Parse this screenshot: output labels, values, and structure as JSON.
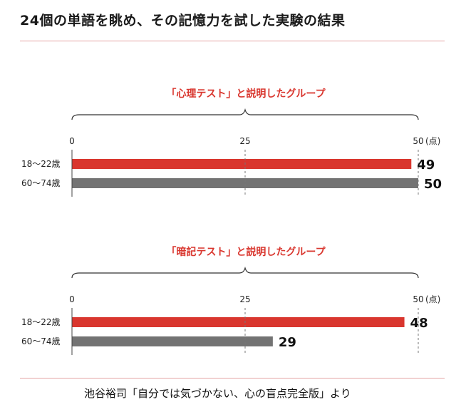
{
  "title": "24個の単語を眺め、その記憶力を試した実験の結果",
  "footer": "池谷裕司「自分では気づかない、心の盲点完全版」より",
  "colors": {
    "young": "#d9362e",
    "old": "#737373",
    "accent": "#d9362e",
    "brace": "#333333"
  },
  "chart_data": [
    {
      "type": "bar",
      "title": "「心理テスト」と説明したグループ",
      "categories": [
        "18〜22歳",
        "60〜74歳"
      ],
      "values": [
        49,
        50
      ],
      "xticks": [
        "0",
        "25",
        "50"
      ],
      "unit": "(点)",
      "xlim": [
        0,
        50
      ]
    },
    {
      "type": "bar",
      "title": "「暗記テスト」と説明したグループ",
      "categories": [
        "18〜22歳",
        "60〜74歳"
      ],
      "values": [
        48,
        29
      ],
      "xticks": [
        "0",
        "25",
        "50"
      ],
      "unit": "(点)",
      "xlim": [
        0,
        50
      ]
    }
  ]
}
